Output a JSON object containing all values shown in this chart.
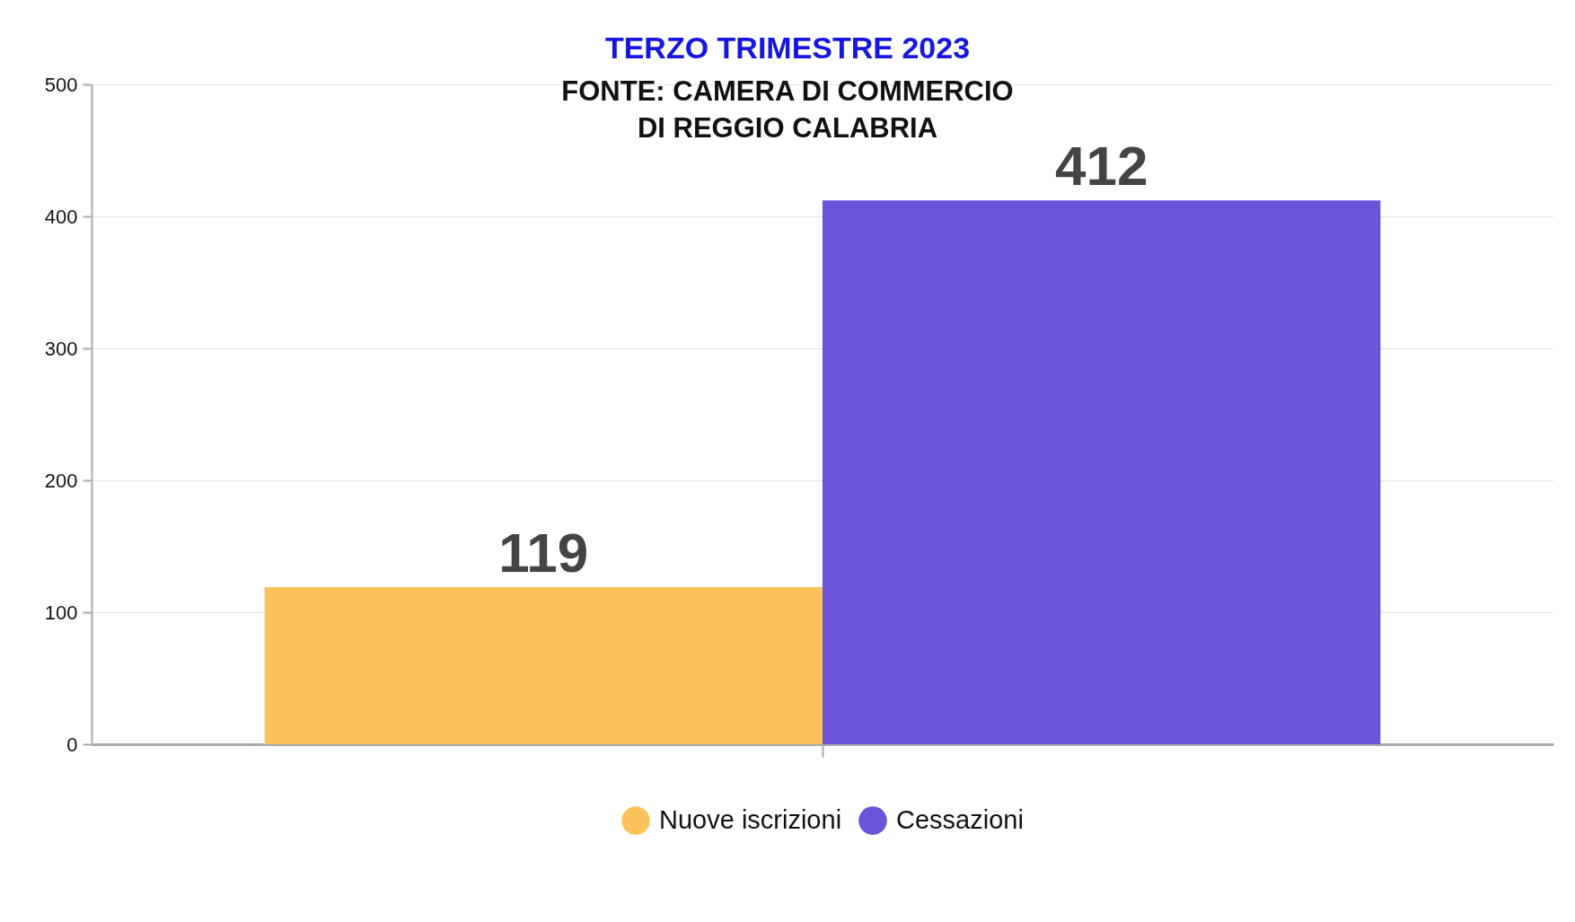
{
  "chart_data": {
    "type": "bar",
    "title": "TERZO TRIMESTRE 2023",
    "subtitle": "FONTE: CAMERA DI COMMERCIO DI REGGIO CALABRIA",
    "categories": [
      null
    ],
    "series": [
      {
        "name": "Nuove iscrizioni",
        "color": "#fcc35c",
        "values": [
          119
        ]
      },
      {
        "name": "Cessazioni",
        "color": "#6c54d8",
        "values": [
          412
        ]
      }
    ],
    "ylim": [
      0,
      500
    ],
    "yticks": [
      0,
      100,
      200,
      300,
      400,
      500
    ],
    "grid": "y",
    "legend": "bottom",
    "data_labels": true
  }
}
